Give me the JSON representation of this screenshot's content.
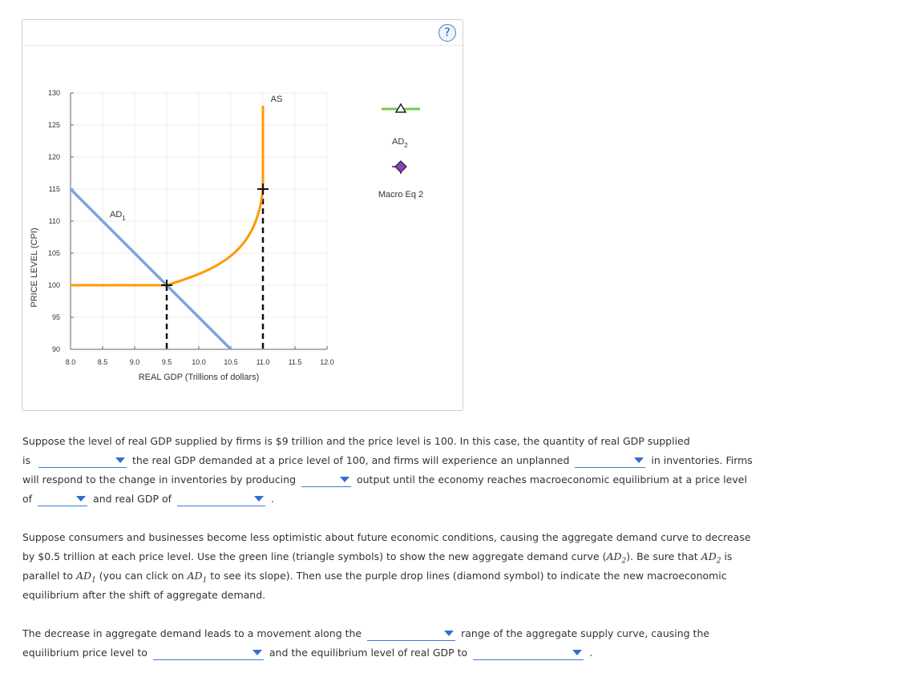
{
  "help": {
    "label": "?"
  },
  "graph": {
    "y_axis_label": "PRICE LEVEL (CPI)",
    "x_axis_label": "REAL GDP (Trillions of dollars)",
    "y_ticks": [
      "130",
      "125",
      "120",
      "115",
      "110",
      "105",
      "100",
      "95",
      "90"
    ],
    "x_ticks": [
      "8.0",
      "8.5",
      "9.0",
      "9.5",
      "10.0",
      "10.5",
      "11.0",
      "11.5",
      "12.0"
    ],
    "as_label": "AS",
    "ad1_label": "AD",
    "ad1_sub": "1",
    "legend": {
      "ad2_label": "AD",
      "ad2_sub": "2",
      "macro_eq_label": "Macro Eq 2"
    },
    "colors": {
      "as": "#ff9900",
      "ad1": "#7aa7d9",
      "ad2": "#78c850",
      "macro_eq": "#8a3fbf"
    }
  },
  "chart_data": {
    "type": "line",
    "xlabel": "REAL GDP (Trillions of dollars)",
    "ylabel": "PRICE LEVEL (CPI)",
    "xlim": [
      8.0,
      12.0
    ],
    "ylim": [
      90,
      130
    ],
    "series": [
      {
        "name": "AD",
        "values": [
          [
            8.0,
            115
          ],
          [
            9.5,
            100
          ],
          [
            10.5,
            90
          ]
        ]
      },
      {
        "name": "AS",
        "values": [
          [
            8.0,
            100
          ],
          [
            9.5,
            100
          ],
          [
            10.0,
            102
          ],
          [
            10.5,
            106
          ],
          [
            10.85,
            110
          ],
          [
            11.0,
            115
          ],
          [
            11.0,
            128
          ]
        ]
      }
    ],
    "points": [
      {
        "x": 9.5,
        "y": 100
      },
      {
        "x": 11.0,
        "y": 115
      }
    ],
    "drop_lines": [
      {
        "x": 9.5,
        "y": 100
      },
      {
        "x": 11.0,
        "y": 115
      }
    ]
  },
  "question1": {
    "t1": "Suppose the level of real GDP supplied by firms is $9 trillion and the price level is 100. In this case, the quantity of real GDP supplied",
    "t2": "is",
    "t3": "the real GDP demanded at a price level of 100, and firms will experience an unplanned",
    "t4": "in inventories. Firms",
    "t5": "will respond to the change in inventories by producing",
    "t6": "output until the economy reaches macroeconomic equilibrium at a price level",
    "t7": "of",
    "t8": "and real GDP of",
    "t9": "."
  },
  "question2": {
    "l1": "Suppose consumers and businesses become less optimistic about future economic conditions, causing the aggregate demand curve to decrease",
    "l2a": "by $0.5 trillion at each price level. Use the green line (triangle symbols) to show the new aggregate demand curve (",
    "ad2": "AD",
    "ad2sub": "2",
    "l2b": "). Be sure that",
    "l2c": "is",
    "l3a": "parallel to",
    "ad1": "AD",
    "ad1sub": "1",
    "l3b": "(you can click on",
    "l3c": "to see its slope). Then use the purple drop lines (diamond symbol) to indicate the new macroeconomic",
    "l4": "equilibrium after the shift of aggregate demand."
  },
  "question3": {
    "t1": "The decrease in aggregate demand leads to a movement along the",
    "t2": "range of the aggregate supply curve, causing the",
    "t3": "equilibrium price level to",
    "t4": "and the equilibrium level of real GDP to",
    "t5": "."
  }
}
